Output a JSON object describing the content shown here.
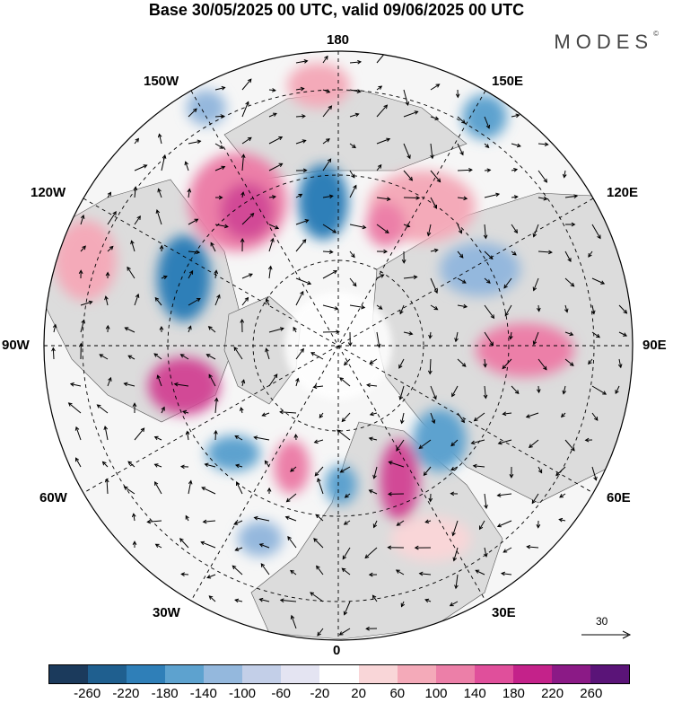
{
  "title": "Base 30/05/2025 00 UTC, valid 09/06/2025 00 UTC",
  "brand": "MODES",
  "brand_mark": "©",
  "longitude_labels": {
    "lon_180": "180",
    "lon_150W": "150W",
    "lon_150E": "150E",
    "lon_120W": "120W",
    "lon_120E": "120E",
    "lon_90W": "90W",
    "lon_90E": "90E",
    "lon_60W": "60W",
    "lon_60E": "60E",
    "lon_30W": "30W",
    "lon_30E": "30E",
    "lon_0": "0"
  },
  "vector_scale_label": "30",
  "colorbar": {
    "colors": [
      "#1b3a5c",
      "#1f5f8f",
      "#2f7fb8",
      "#5da2cf",
      "#94b8dd",
      "#c3cfe8",
      "#e4e4f2",
      "#ffffff",
      "#f9d6d8",
      "#f4aab9",
      "#ec7fa8",
      "#e04f9b",
      "#c4228a",
      "#8b1a86",
      "#5a1478"
    ],
    "ticks": [
      "-260",
      "-220",
      "-180",
      "-140",
      "-100",
      "-60",
      "-20",
      "20",
      "60",
      "100",
      "140",
      "180",
      "220",
      "260"
    ]
  },
  "colors": {
    "land": "#d9d9d9",
    "ocean": "#f6f6f6",
    "graticule": "#000000"
  }
}
